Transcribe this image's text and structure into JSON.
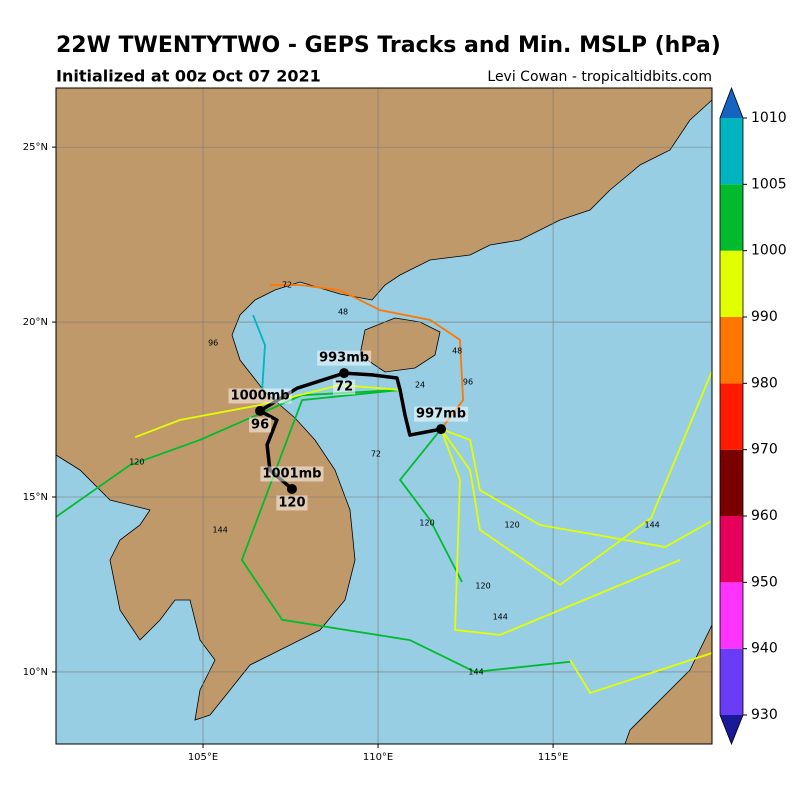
{
  "chart_data": {
    "type": "track-map",
    "title": "22W TWENTYTWO - GEPS Tracks and Min. MSLP (hPa)",
    "subtitle": "Initialized at 00z Oct 07 2021",
    "credit": "Levi Cowan - tropicaltidbits.com",
    "xlim": [
      100.8,
      119.54
    ],
    "ylim": [
      7.94,
      26.69
    ],
    "xticks": [
      {
        "value": 105,
        "label": "105°E"
      },
      {
        "value": 110,
        "label": "110°E"
      },
      {
        "value": 115,
        "label": "115°E"
      }
    ],
    "yticks": [
      {
        "value": 10,
        "label": "10°N"
      },
      {
        "value": 15,
        "label": "15°N"
      },
      {
        "value": 20,
        "label": "20°N"
      },
      {
        "value": 25,
        "label": "25°N"
      }
    ],
    "grid": true,
    "colorbar": {
      "levels": [
        930,
        940,
        950,
        960,
        970,
        980,
        990,
        1000,
        1005,
        1010
      ],
      "colors": [
        "#6a3cf5",
        "#ff33ff",
        "#e6005c",
        "#7a0000",
        "#ff1a00",
        "#ff7700",
        "#e2ff00",
        "#00bb2d",
        "#00b5bf"
      ],
      "under_color": "#1a1a99",
      "over_color": "#1565c0"
    },
    "tracks": [
      {
        "color": "#e2ff00",
        "lon": [
          111.8,
          112.63,
          112.91,
          114.63,
          118.2,
          119.5
        ],
        "lat": [
          16.94,
          16.63,
          15.2,
          14.2,
          13.57,
          14.3
        ]
      },
      {
        "color": "#00bb2d",
        "lon": [
          111.8,
          110.63,
          111.49,
          112.4
        ],
        "lat": [
          16.94,
          15.49,
          14.34,
          12.57
        ]
      },
      {
        "color": "#00bb2d",
        "lon": [
          110.63,
          107.83,
          106.11,
          107.26,
          110.91,
          112.77,
          115.49
        ],
        "lat": [
          18.06,
          17.77,
          13.2,
          11.49,
          10.91,
          10.0,
          10.29
        ]
      },
      {
        "color": "#e2ff00",
        "lon": [
          111.8,
          112.63,
          112.91,
          115.2,
          117.8,
          119.54
        ],
        "lat": [
          16.94,
          15.77,
          14.06,
          12.49,
          14.4,
          18.6
        ]
      },
      {
        "color": "#ff7700",
        "lon": [
          111.8,
          112.43,
          112.34,
          111.49,
          110.06,
          108.91,
          107.77,
          106.91
        ],
        "lat": [
          16.94,
          17.77,
          19.49,
          20.06,
          20.34,
          20.91,
          21.06,
          21.06
        ]
      },
      {
        "color": "#00bb2d",
        "lon": [
          110.63,
          107.83,
          104.91,
          102.91,
          100.8
        ],
        "lat": [
          18.06,
          17.91,
          16.63,
          15.91,
          14.43
        ]
      },
      {
        "color": "#e2ff00",
        "lon": [
          110.63,
          108.91,
          106.63,
          104.34,
          103.06
        ],
        "lat": [
          18.06,
          18.2,
          17.63,
          17.2,
          16.71
        ]
      },
      {
        "color": "#00b5bf",
        "lon": [
          106.43,
          106.77,
          106.69
        ],
        "lat": [
          20.2,
          19.34,
          18.06
        ]
      },
      {
        "color": "#e2ff00",
        "lon": [
          111.8,
          112.34,
          112.2,
          113.49,
          118.63
        ],
        "lat": [
          16.94,
          15.49,
          11.2,
          11.06,
          13.2
        ]
      },
      {
        "color": "#e2ff00",
        "lon": [
          115.49,
          116.06,
          119.54
        ],
        "lat": [
          10.34,
          9.4,
          10.54
        ]
      }
    ],
    "hour_labels": [
      {
        "text": "72",
        "lon": 107.4,
        "lat": 21.06
      },
      {
        "text": "96",
        "lon": 105.29,
        "lat": 19.4
      },
      {
        "text": "120",
        "lon": 103.11,
        "lat": 16.0
      },
      {
        "text": "144",
        "lon": 105.49,
        "lat": 14.06
      },
      {
        "text": "144",
        "lon": 112.8,
        "lat": 10.0
      },
      {
        "text": "120",
        "lon": 113.83,
        "lat": 14.2
      },
      {
        "text": "144",
        "lon": 117.83,
        "lat": 14.2
      },
      {
        "text": "120",
        "lon": 113.0,
        "lat": 12.46
      },
      {
        "text": "144",
        "lon": 113.49,
        "lat": 11.57
      },
      {
        "text": "48",
        "lon": 109.0,
        "lat": 20.29
      },
      {
        "text": "24",
        "lon": 111.2,
        "lat": 18.2
      },
      {
        "text": "48",
        "lon": 112.26,
        "lat": 19.17
      },
      {
        "text": "72",
        "lon": 109.94,
        "lat": 16.23
      },
      {
        "text": "96",
        "lon": 112.57,
        "lat": 18.29
      },
      {
        "text": "120",
        "lon": 111.4,
        "lat": 14.26
      }
    ],
    "mean_track": {
      "lon": [
        111.8,
        110.91,
        110.77,
        110.63,
        110.54,
        109.83,
        109.03,
        107.69,
        106.63,
        107.11,
        106.83,
        106.91,
        107.54
      ],
      "lat": [
        16.94,
        16.77,
        17.34,
        18.06,
        18.4,
        18.49,
        18.54,
        18.11,
        17.46,
        17.2,
        16.49,
        15.77,
        15.23
      ]
    },
    "mean_track_labels": [
      {
        "lon": 111.8,
        "lat": 16.94,
        "mslp": {
          "value": 997,
          "label": "997mb"
        }
      },
      {
        "lon": 109.03,
        "lat": 18.54,
        "mslp": {
          "value": 993,
          "label": "993mb"
        },
        "hour": 72
      },
      {
        "lon": 106.63,
        "lat": 17.46,
        "mslp": {
          "value": 1000,
          "label": "1000mb"
        },
        "hour": 96
      },
      {
        "lon": 107.54,
        "lat": 15.23,
        "mslp": {
          "value": 1001,
          "label": "1001mb"
        },
        "hour": 120
      }
    ]
  }
}
